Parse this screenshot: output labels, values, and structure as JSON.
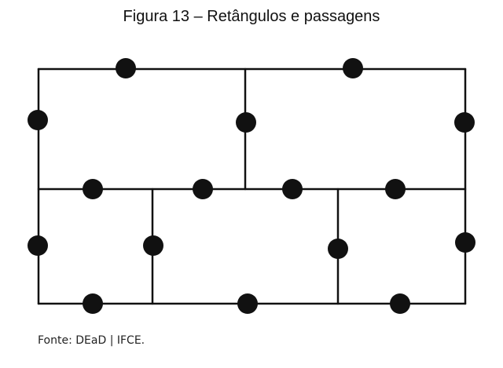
{
  "figure": {
    "title": "Figura 13 – Retângulos e passagens",
    "source": "Fonte: DEaD | IFCE."
  },
  "colors": {
    "line": "#111111",
    "dot": "#111111"
  }
}
